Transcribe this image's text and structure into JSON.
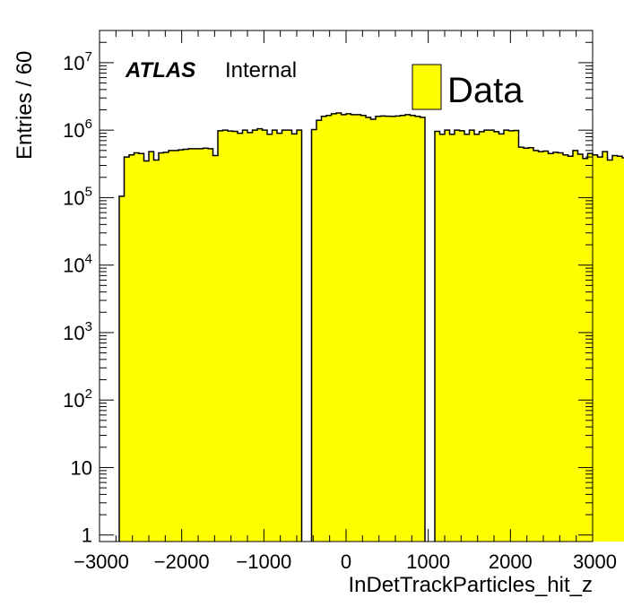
{
  "chart_data": {
    "type": "bar",
    "xlabel": "InDetTrackParticles_hit_z",
    "ylabel": "Entries / 60",
    "xlim": [
      -3000,
      3000
    ],
    "ylim": [
      0.8,
      30000000
    ],
    "y_scale": "log",
    "x_ticks": [
      {
        "value": -3000,
        "label": "−3000"
      },
      {
        "value": -2000,
        "label": "−2000"
      },
      {
        "value": -1000,
        "label": "−1000"
      },
      {
        "value": 0,
        "label": "0"
      },
      {
        "value": 1000,
        "label": "1000"
      },
      {
        "value": 2000,
        "label": "2000"
      },
      {
        "value": 3000,
        "label": "3000"
      }
    ],
    "y_ticks": [
      {
        "value": 1,
        "base": "1",
        "exp": ""
      },
      {
        "value": 10,
        "base": "10",
        "exp": ""
      },
      {
        "value": 100,
        "base": "10",
        "exp": "2"
      },
      {
        "value": 1000,
        "base": "10",
        "exp": "3"
      },
      {
        "value": 10000,
        "base": "10",
        "exp": "4"
      },
      {
        "value": 100000,
        "base": "10",
        "exp": "5"
      },
      {
        "value": 1000000,
        "base": "10",
        "exp": "6"
      },
      {
        "value": 10000000,
        "base": "10",
        "exp": "7"
      }
    ],
    "atlas_label": "ATLAS",
    "atlas_sublabel": "Internal",
    "legend": {
      "entry": "Data",
      "placement": "top-right",
      "color": "#ffff00"
    },
    "fill_color": "#ffff00",
    "line_color": "#000000",
    "series": [
      {
        "name": "Data",
        "bin_width": 60,
        "bin_edges_start": -2760,
        "values": [
          105000,
          400000,
          430000,
          460000,
          450000,
          350000,
          480000,
          360000,
          460000,
          470000,
          500000,
          500000,
          510000,
          520000,
          530000,
          530000,
          530000,
          540000,
          530000,
          420000,
          980000,
          1000000,
          970000,
          960000,
          900000,
          1000000,
          920000,
          1000000,
          1050000,
          1000000,
          870000,
          1000000,
          900000,
          1000000,
          1000000,
          880000,
          1000000,
          0,
          0,
          1020000,
          1400000,
          1600000,
          1650000,
          1750000,
          1800000,
          1700000,
          1750000,
          1700000,
          1700000,
          1650000,
          1550000,
          1450000,
          1600000,
          1620000,
          1610000,
          1600000,
          1620000,
          1650000,
          1700000,
          1650000,
          1600000,
          1550000,
          0,
          0,
          960000,
          870000,
          1000000,
          870000,
          1000000,
          980000,
          870000,
          1000000,
          870000,
          950000,
          1000000,
          1000000,
          950000,
          880000,
          1000000,
          980000,
          990000,
          560000,
          540000,
          550000,
          500000,
          480000,
          490000,
          450000,
          470000,
          460000,
          430000,
          410000,
          500000,
          440000,
          380000,
          450000,
          430000,
          400000,
          480000,
          360000,
          420000,
          410000,
          390000,
          320000,
          105000
        ]
      }
    ]
  }
}
